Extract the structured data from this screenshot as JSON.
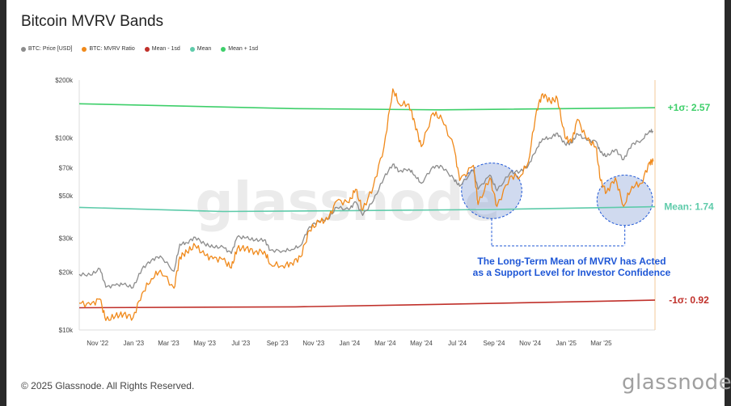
{
  "chart_data": {
    "type": "line",
    "title": "Bitcoin MVRV Bands",
    "y_scale": "log",
    "ylim": [
      10000,
      200000
    ],
    "xlim": [
      "2022-10-01",
      "2025-05-31"
    ],
    "y_ticks": [
      {
        "value": 200000,
        "label": "$200k"
      },
      {
        "value": 100000,
        "label": "$100k"
      },
      {
        "value": 70000,
        "label": "$70k"
      },
      {
        "value": 50000,
        "label": "$50k"
      },
      {
        "value": 30000,
        "label": "$30k"
      },
      {
        "value": 20000,
        "label": "$20k"
      },
      {
        "value": 10000,
        "label": "$10k"
      }
    ],
    "x_ticks": [
      {
        "date": "2022-11-01",
        "label": "Nov '22"
      },
      {
        "date": "2023-01-01",
        "label": "Jan '23"
      },
      {
        "date": "2023-03-01",
        "label": "Mar '23"
      },
      {
        "date": "2023-05-01",
        "label": "May '23"
      },
      {
        "date": "2023-07-01",
        "label": "Jul '23"
      },
      {
        "date": "2023-09-01",
        "label": "Sep '23"
      },
      {
        "date": "2023-11-01",
        "label": "Nov '23"
      },
      {
        "date": "2024-01-01",
        "label": "Jan '24"
      },
      {
        "date": "2024-03-01",
        "label": "Mar '24"
      },
      {
        "date": "2024-05-01",
        "label": "May '24"
      },
      {
        "date": "2024-07-01",
        "label": "Jul '24"
      },
      {
        "date": "2024-09-01",
        "label": "Sep '24"
      },
      {
        "date": "2024-11-01",
        "label": "Nov '24"
      },
      {
        "date": "2025-01-01",
        "label": "Jan '25"
      },
      {
        "date": "2025-03-01",
        "label": "Mar '25"
      }
    ],
    "series": [
      {
        "name": "BTC: Price [USD]",
        "color": "#8c8c8c",
        "points": [
          [
            "2022-10-01",
            19500
          ],
          [
            "2022-10-20",
            19300
          ],
          [
            "2022-11-05",
            20800
          ],
          [
            "2022-11-15",
            16700
          ],
          [
            "2022-12-01",
            17100
          ],
          [
            "2022-12-15",
            17300
          ],
          [
            "2022-12-31",
            16600
          ],
          [
            "2023-01-15",
            20800
          ],
          [
            "2023-01-31",
            23100
          ],
          [
            "2023-02-15",
            24300
          ],
          [
            "2023-03-10",
            20200
          ],
          [
            "2023-03-20",
            28000
          ],
          [
            "2023-04-01",
            28500
          ],
          [
            "2023-04-15",
            30400
          ],
          [
            "2023-05-01",
            28000
          ],
          [
            "2023-05-15",
            27000
          ],
          [
            "2023-06-01",
            27000
          ],
          [
            "2023-06-15",
            25000
          ],
          [
            "2023-06-25",
            30500
          ],
          [
            "2023-07-10",
            30200
          ],
          [
            "2023-07-25",
            29300
          ],
          [
            "2023-08-10",
            29500
          ],
          [
            "2023-08-20",
            26000
          ],
          [
            "2023-09-10",
            25800
          ],
          [
            "2023-09-25",
            26300
          ],
          [
            "2023-10-10",
            27500
          ],
          [
            "2023-10-25",
            34500
          ],
          [
            "2023-11-10",
            37000
          ],
          [
            "2023-11-25",
            37700
          ],
          [
            "2023-12-10",
            43500
          ],
          [
            "2023-12-31",
            42300
          ],
          [
            "2024-01-11",
            46500
          ],
          [
            "2024-01-23",
            39500
          ],
          [
            "2024-02-10",
            47000
          ],
          [
            "2024-02-28",
            62000
          ],
          [
            "2024-03-14",
            73000
          ],
          [
            "2024-03-25",
            67000
          ],
          [
            "2024-04-10",
            69000
          ],
          [
            "2024-04-20",
            64000
          ],
          [
            "2024-05-01",
            58000
          ],
          [
            "2024-05-21",
            71000
          ],
          [
            "2024-06-05",
            71000
          ],
          [
            "2024-06-25",
            61000
          ],
          [
            "2024-07-05",
            56000
          ],
          [
            "2024-07-28",
            68000
          ],
          [
            "2024-08-05",
            54000
          ],
          [
            "2024-08-25",
            64000
          ],
          [
            "2024-09-06",
            53000
          ],
          [
            "2024-09-28",
            65800
          ],
          [
            "2024-10-15",
            67000
          ],
          [
            "2024-10-29",
            72000
          ],
          [
            "2024-11-12",
            88000
          ],
          [
            "2024-11-22",
            99000
          ],
          [
            "2024-12-05",
            100000
          ],
          [
            "2024-12-17",
            106000
          ],
          [
            "2024-12-30",
            93000
          ],
          [
            "2025-01-10",
            94000
          ],
          [
            "2025-01-20",
            105000
          ],
          [
            "2025-02-05",
            97000
          ],
          [
            "2025-02-20",
            96000
          ],
          [
            "2025-02-28",
            84000
          ],
          [
            "2025-03-10",
            80000
          ],
          [
            "2025-03-25",
            87000
          ],
          [
            "2025-04-08",
            77000
          ],
          [
            "2025-04-22",
            93000
          ],
          [
            "2025-05-08",
            97000
          ],
          [
            "2025-05-22",
            109000
          ],
          [
            "2025-05-28",
            108000
          ]
        ]
      },
      {
        "name": "BTC: MVRV Ratio",
        "color": "#f0891a",
        "points": [
          [
            "2022-10-01",
            13800
          ],
          [
            "2022-10-20",
            13500
          ],
          [
            "2022-11-05",
            14500
          ],
          [
            "2022-11-15",
            11200
          ],
          [
            "2022-12-01",
            11800
          ],
          [
            "2022-12-15",
            12100
          ],
          [
            "2022-12-31",
            11600
          ],
          [
            "2023-01-15",
            15500
          ],
          [
            "2023-01-31",
            18500
          ],
          [
            "2023-02-15",
            20500
          ],
          [
            "2023-03-10",
            16500
          ],
          [
            "2023-03-20",
            24000
          ],
          [
            "2023-04-01",
            25500
          ],
          [
            "2023-04-15",
            27500
          ],
          [
            "2023-05-01",
            24500
          ],
          [
            "2023-05-15",
            23500
          ],
          [
            "2023-06-01",
            23300
          ],
          [
            "2023-06-15",
            21000
          ],
          [
            "2023-06-25",
            26500
          ],
          [
            "2023-07-10",
            26700
          ],
          [
            "2023-07-25",
            25500
          ],
          [
            "2023-08-10",
            25700
          ],
          [
            "2023-08-20",
            22000
          ],
          [
            "2023-09-10",
            21600
          ],
          [
            "2023-09-25",
            22300
          ],
          [
            "2023-10-10",
            24000
          ],
          [
            "2023-10-25",
            33000
          ],
          [
            "2023-11-10",
            36500
          ],
          [
            "2023-11-25",
            37500
          ],
          [
            "2023-12-10",
            47000
          ],
          [
            "2023-12-31",
            46000
          ],
          [
            "2024-01-11",
            54000
          ],
          [
            "2024-01-23",
            42000
          ],
          [
            "2024-02-10",
            56000
          ],
          [
            "2024-02-28",
            90000
          ],
          [
            "2024-03-14",
            180000
          ],
          [
            "2024-03-25",
            150000
          ],
          [
            "2024-04-10",
            150000
          ],
          [
            "2024-04-20",
            120000
          ],
          [
            "2024-05-01",
            90000
          ],
          [
            "2024-05-21",
            135000
          ],
          [
            "2024-06-05",
            125000
          ],
          [
            "2024-06-25",
            90000
          ],
          [
            "2024-07-05",
            60000
          ],
          [
            "2024-07-28",
            72000
          ],
          [
            "2024-08-05",
            45000
          ],
          [
            "2024-08-25",
            62000
          ],
          [
            "2024-09-06",
            44000
          ],
          [
            "2024-09-28",
            63000
          ],
          [
            "2024-10-15",
            63000
          ],
          [
            "2024-10-29",
            75000
          ],
          [
            "2024-11-12",
            140000
          ],
          [
            "2024-11-22",
            170000
          ],
          [
            "2024-12-05",
            155000
          ],
          [
            "2024-12-17",
            160000
          ],
          [
            "2024-12-30",
            100000
          ],
          [
            "2025-01-10",
            95000
          ],
          [
            "2025-01-20",
            125000
          ],
          [
            "2025-02-05",
            98000
          ],
          [
            "2025-02-20",
            90000
          ],
          [
            "2025-02-28",
            60000
          ],
          [
            "2025-03-10",
            52000
          ],
          [
            "2025-03-25",
            62000
          ],
          [
            "2025-04-08",
            44000
          ],
          [
            "2025-04-22",
            56000
          ],
          [
            "2025-05-08",
            58000
          ],
          [
            "2025-05-22",
            75000
          ],
          [
            "2025-05-28",
            75500
          ]
        ]
      },
      {
        "name": "Mean - 1sd",
        "color": "#c0302a",
        "points": [
          [
            "2022-10-01",
            13050
          ],
          [
            "2023-10-01",
            13200
          ],
          [
            "2024-06-01",
            13600
          ],
          [
            "2025-01-01",
            14000
          ],
          [
            "2025-05-31",
            14300
          ]
        ]
      },
      {
        "name": "Mean",
        "color": "#5ecbaa",
        "points": [
          [
            "2022-10-01",
            43500
          ],
          [
            "2023-06-01",
            41400
          ],
          [
            "2024-01-01",
            41800
          ],
          [
            "2024-09-01",
            42400
          ],
          [
            "2025-05-31",
            43800
          ]
        ]
      },
      {
        "name": "Mean + 1sd",
        "color": "#3ecf6a",
        "points": [
          [
            "2022-10-01",
            150500
          ],
          [
            "2023-10-01",
            142000
          ],
          [
            "2024-06-01",
            140000
          ],
          [
            "2025-05-31",
            143500
          ]
        ]
      }
    ],
    "band_labels": [
      {
        "text": "+1σ: 2.57",
        "color": "#3ecf6a"
      },
      {
        "text": "Mean: 1.74",
        "color": "#5ecbaa"
      },
      {
        "text": "-1σ: 0.92",
        "color": "#c0302a"
      }
    ],
    "annotation": {
      "line1": "The Long-Term Mean of MVRV has Acted",
      "line2": "as a Support Level for Investor Confidence",
      "color": "#1f57d6",
      "highlight_ranges": [
        {
          "start": "2024-07-08",
          "end": "2024-10-18",
          "ymin": 38000,
          "ymax": 74000
        },
        {
          "start": "2025-02-22",
          "end": "2025-05-27",
          "ymin": 35000,
          "ymax": 64000
        }
      ]
    },
    "watermark": "glassnode",
    "grid": false,
    "legend_position": "top-left"
  },
  "legend": [
    {
      "label": "BTC: Price [USD]",
      "color": "#8c8c8c"
    },
    {
      "label": "BTC: MVRV Ratio",
      "color": "#f0891a"
    },
    {
      "label": "Mean - 1sd",
      "color": "#c0302a"
    },
    {
      "label": "Mean",
      "color": "#5ecbaa"
    },
    {
      "label": "Mean + 1sd",
      "color": "#3ecf6a"
    }
  ],
  "footer": {
    "copyright": "© 2025 Glassnode. All Rights Reserved.",
    "brand": "glassnode"
  }
}
